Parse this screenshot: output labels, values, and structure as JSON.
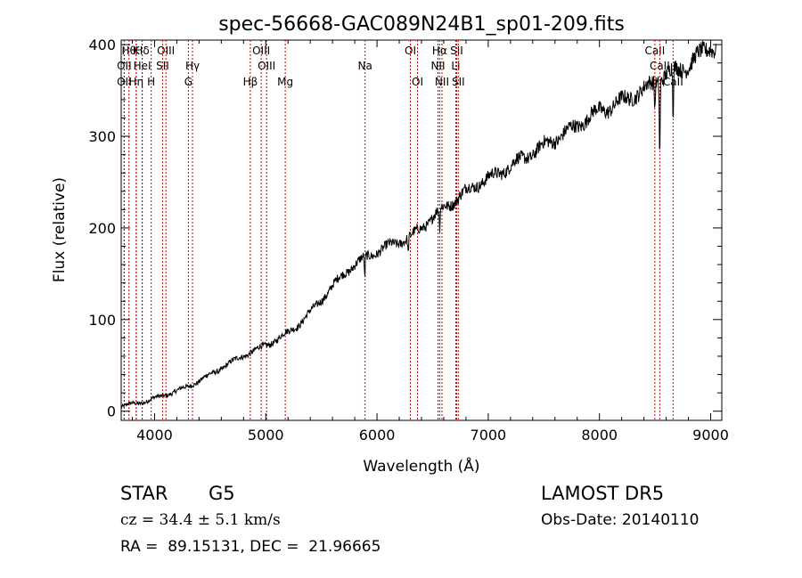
{
  "chart_data": {
    "type": "line",
    "title": "spec-56668-GAC089N24B1_sp01-209.fits",
    "xlabel": "Wavelength (Å)",
    "ylabel": "Flux (relative)",
    "xlim": [
      3700,
      9100
    ],
    "ylim": [
      -10,
      405
    ],
    "xticks": [
      4000,
      5000,
      6000,
      7000,
      8000,
      9000
    ],
    "yticks": [
      0,
      100,
      200,
      300,
      400
    ],
    "grid": false,
    "series": [
      {
        "color": "#000000",
        "x": [
          3700,
          3800,
          3900,
          4000,
          4100,
          4200,
          4300,
          4400,
          4500,
          4600,
          4700,
          4800,
          4900,
          5000,
          5100,
          5200,
          5300,
          5400,
          5500,
          5600,
          5700,
          5800,
          5900,
          6000,
          6100,
          6200,
          6300,
          6400,
          6500,
          6600,
          6700,
          6800,
          6900,
          7000,
          7100,
          7200,
          7300,
          7400,
          7500,
          7600,
          7700,
          7800,
          7900,
          8000,
          8100,
          8200,
          8300,
          8400,
          8500,
          8600,
          8700,
          8800,
          8900,
          9000,
          9050
        ],
        "y": [
          5,
          8,
          10,
          14,
          18,
          22,
          27,
          33,
          40,
          47,
          54,
          61,
          66,
          72,
          78,
          86,
          95,
          108,
          122,
          136,
          150,
          160,
          168,
          174,
          180,
          185,
          190,
          200,
          212,
          222,
          230,
          240,
          248,
          254,
          260,
          268,
          275,
          282,
          290,
          297,
          304,
          312,
          320,
          328,
          332,
          338,
          345,
          350,
          360,
          368,
          372,
          378,
          388,
          400,
          395
        ]
      }
    ],
    "absorption_dips": [
      {
        "x": 5890,
        "depth": 25
      },
      {
        "x": 6280,
        "depth": 18
      },
      {
        "x": 6563,
        "depth": 22
      },
      {
        "x": 8498,
        "depth": 30
      },
      {
        "x": 8542,
        "depth": 85
      },
      {
        "x": 8662,
        "depth": 55
      }
    ],
    "line_markers": [
      {
        "x": 3770,
        "label": "Hθ",
        "row": 0
      },
      {
        "x": 3835,
        "label": "K",
        "row": 0
      },
      {
        "x": 3889,
        "label": "Hδ",
        "row": 0
      },
      {
        "x": 4102,
        "label": "OIII",
        "row": 0
      },
      {
        "x": 4959,
        "label": "OIII",
        "row": 0
      },
      {
        "x": 6300,
        "label": "OI",
        "row": 0
      },
      {
        "x": 6563,
        "label": "Hα",
        "row": 0
      },
      {
        "x": 6716,
        "label": "SII",
        "row": 0
      },
      {
        "x": 8498,
        "label": "CaII",
        "row": 0
      },
      {
        "x": 3727,
        "label": "OII",
        "row": 1
      },
      {
        "x": 3889,
        "label": "HeI",
        "row": 1
      },
      {
        "x": 4072,
        "label": "SII",
        "row": 1
      },
      {
        "x": 4341,
        "label": "Hγ",
        "row": 1
      },
      {
        "x": 5007,
        "label": "OIII",
        "row": 1
      },
      {
        "x": 5893,
        "label": "Na",
        "row": 1
      },
      {
        "x": 6548,
        "label": "NII",
        "row": 1
      },
      {
        "x": 6708,
        "label": "Li",
        "row": 1
      },
      {
        "x": 8542,
        "label": "CaII",
        "row": 1
      },
      {
        "x": 3727,
        "label": "OII",
        "row": 2
      },
      {
        "x": 3835,
        "label": "Hη",
        "row": 2
      },
      {
        "x": 3970,
        "label": "H",
        "row": 2
      },
      {
        "x": 4304,
        "label": "G",
        "row": 2
      },
      {
        "x": 4861,
        "label": "Hβ",
        "row": 2
      },
      {
        "x": 5175,
        "label": "Mg",
        "row": 2
      },
      {
        "x": 6364,
        "label": "OI",
        "row": 2
      },
      {
        "x": 6584,
        "label": "NII",
        "row": 2
      },
      {
        "x": 6731,
        "label": "SII",
        "row": 2
      },
      {
        "x": 8662,
        "label": "CaII",
        "row": 2
      }
    ],
    "marker_color": "#cc0000"
  },
  "footer": {
    "class_label": "STAR",
    "subclass": "G5",
    "survey": "LAMOST DR5",
    "cz": "cz = 34.4 ± 5.1 km/s",
    "obs_date": "Obs-Date: 20140110",
    "coords": "RA =  89.15131, DEC =  21.96665"
  }
}
